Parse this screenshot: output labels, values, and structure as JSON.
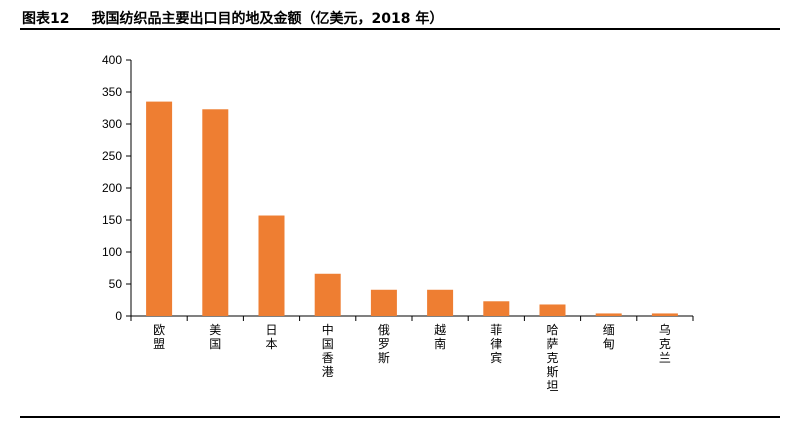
{
  "figure": {
    "label": "图表12",
    "title": "我国纺织品主要出口目的地及金额（亿美元，2018 年）"
  },
  "colors": {
    "bar": "#EE7E32",
    "axis": "#000000"
  },
  "chart_data": {
    "type": "bar",
    "title": "",
    "xlabel": "",
    "ylabel": "",
    "categories": [
      "欧盟",
      "美国",
      "日本",
      "中国香港",
      "俄罗斯",
      "越南",
      "菲律宾",
      "哈萨克斯坦",
      "缅甸",
      "乌克兰"
    ],
    "values": [
      335,
      323,
      157,
      66,
      41,
      41,
      23,
      18,
      4,
      4
    ],
    "ylim": [
      0,
      400
    ],
    "yticks": [
      0,
      50,
      100,
      150,
      200,
      250,
      300,
      350,
      400
    ],
    "grid": false,
    "legend": "none"
  }
}
